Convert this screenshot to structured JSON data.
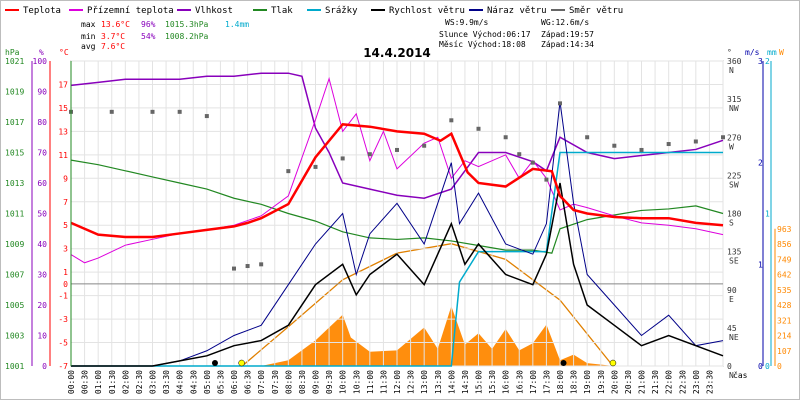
{
  "chart_data": {
    "type": "line",
    "title": "14.4.2014",
    "legend": [
      {
        "name": "Teplota",
        "color": "#ff0000"
      },
      {
        "name": "Přízemní teplota",
        "color": "#dd00dd"
      },
      {
        "name": "Vlhkost",
        "color": "#8800bb"
      },
      {
        "name": "Tlak",
        "color": "#228822"
      },
      {
        "name": "Srážky",
        "color": "#00aacc"
      },
      {
        "name": "Rychlost větru",
        "color": "#000000"
      },
      {
        "name": "Náraz větru",
        "color": "#000088"
      },
      {
        "name": "Směr větru",
        "color": "#666666"
      }
    ],
    "stats": {
      "max_label": "max",
      "max_temp": "13.6°C",
      "max_hum": "96%",
      "max_press": "1015.3hPa",
      "max_rain": "1.4mm",
      "min_label": "min",
      "min_temp": "3.7°C",
      "min_hum": "54%",
      "min_press": "1008.2hPa",
      "avg_label": "avg",
      "avg_temp": "7.6°C"
    },
    "wind_info": {
      "ws": "WS:9.9m/s",
      "wg": "WG:12.6m/s",
      "sun": "Slunce Východ:06:17",
      "sun_set": "Západ:19:57",
      "moon": "Měsíc  Východ:18:08",
      "moon_set": "Západ:14:34"
    },
    "x_ticks": [
      "00:00",
      "00:30",
      "01:00",
      "01:30",
      "02:00",
      "02:30",
      "03:00",
      "03:30",
      "04:00",
      "04:30",
      "05:00",
      "05:30",
      "06:00",
      "06:30",
      "07:00",
      "07:30",
      "08:00",
      "08:30",
      "09:00",
      "09:30",
      "10:00",
      "10:30",
      "11:00",
      "11:30",
      "12:00",
      "12:30",
      "13:00",
      "13:30",
      "14:00",
      "14:30",
      "15:00",
      "15:30",
      "16:00",
      "16:30",
      "17:00",
      "17:30",
      "18:00",
      "18:30",
      "19:00",
      "19:30",
      "20:00",
      "20:30",
      "21:00",
      "21:30",
      "22:00",
      "22:30",
      "23:00",
      "23:30"
    ],
    "x_axis_label": "čas",
    "axes": {
      "hpa": {
        "label": "hPa",
        "color": "#228822",
        "ticks": [
          "1021",
          "1019",
          "1017",
          "1015",
          "1013",
          "1011",
          "1009",
          "1007",
          "1005",
          "1003",
          "1001"
        ]
      },
      "pct": {
        "label": "%",
        "color": "#8800bb",
        "ticks": [
          "100",
          "90",
          "80",
          "70",
          "60",
          "50",
          "40",
          "30",
          "20",
          "10",
          "0"
        ]
      },
      "degc": {
        "label": "°C",
        "color": "#ff0000",
        "ticks": [
          "17",
          "15",
          "13",
          "11",
          "9",
          "7",
          "5",
          "3",
          "1",
          "-1",
          "-3",
          "-5",
          "-7"
        ],
        "zero": "0"
      },
      "deg": {
        "label": "°",
        "ticks": [
          "360\nN",
          "315\nNW",
          "270\nW",
          "225\nSW",
          "180\nS",
          "135\nSE",
          "90\nE",
          "45\nNE",
          "0\nN"
        ]
      },
      "ms": {
        "label": "m/s",
        "color": "#0000aa",
        "ticks": [
          "3",
          "2",
          "1",
          "0"
        ]
      },
      "mm": {
        "label": "mm",
        "color": "#00aacc",
        "ticks": [
          "2",
          "1",
          "0"
        ]
      },
      "wm2": {
        "label": "W",
        "color": "#ff8800",
        "ticks": [
          "963",
          "856",
          "749",
          "642",
          "535",
          "428",
          "321",
          "214",
          "107",
          "0"
        ]
      }
    },
    "ylim_temp": [
      -7,
      19
    ],
    "series_temp": [
      [
        0,
        5.2
      ],
      [
        1,
        4.2
      ],
      [
        2,
        4.0
      ],
      [
        3,
        4.0
      ],
      [
        4,
        4.3
      ],
      [
        5,
        4.6
      ],
      [
        6,
        4.9
      ],
      [
        6.5,
        5.2
      ],
      [
        7,
        5.6
      ],
      [
        8,
        6.8
      ],
      [
        9,
        10.8
      ],
      [
        10,
        13.6
      ],
      [
        11,
        13.4
      ],
      [
        12,
        13.0
      ],
      [
        13,
        12.8
      ],
      [
        13.6,
        12.2
      ],
      [
        14,
        12.8
      ],
      [
        14.6,
        9.5
      ],
      [
        15,
        8.6
      ],
      [
        16,
        8.3
      ],
      [
        17,
        9.8
      ],
      [
        17.7,
        9.6
      ],
      [
        18,
        7.5
      ],
      [
        18.5,
        6.3
      ],
      [
        19,
        6.0
      ],
      [
        20,
        5.7
      ],
      [
        21,
        5.6
      ],
      [
        22,
        5.6
      ],
      [
        23,
        5.2
      ],
      [
        24,
        5.0
      ]
    ],
    "series_ground": [
      [
        0,
        2.5
      ],
      [
        0.5,
        1.8
      ],
      [
        1,
        2.2
      ],
      [
        2,
        3.3
      ],
      [
        3,
        3.8
      ],
      [
        4,
        4.3
      ],
      [
        5,
        4.6
      ],
      [
        6,
        5.0
      ],
      [
        7,
        5.8
      ],
      [
        8,
        7.5
      ],
      [
        9,
        14.0
      ],
      [
        9.5,
        17.5
      ],
      [
        10,
        13.0
      ],
      [
        10.5,
        14.5
      ],
      [
        11,
        10.5
      ],
      [
        11.5,
        13.0
      ],
      [
        12,
        9.8
      ],
      [
        13,
        12.0
      ],
      [
        13.5,
        12.5
      ],
      [
        14,
        9.0
      ],
      [
        14.5,
        10.5
      ],
      [
        15,
        10.0
      ],
      [
        16,
        11.0
      ],
      [
        16.5,
        9.0
      ],
      [
        17,
        10.5
      ],
      [
        17.5,
        9.0
      ],
      [
        18,
        6.3
      ],
      [
        18.5,
        6.8
      ],
      [
        19,
        6.5
      ],
      [
        20,
        5.8
      ],
      [
        21,
        5.2
      ],
      [
        22,
        5.0
      ],
      [
        23,
        4.7
      ],
      [
        24,
        4.2
      ]
    ],
    "series_humidity": [
      [
        0,
        92
      ],
      [
        1,
        93
      ],
      [
        2,
        94
      ],
      [
        3,
        94
      ],
      [
        4,
        94
      ],
      [
        5,
        95
      ],
      [
        6,
        95
      ],
      [
        7,
        96
      ],
      [
        8,
        96
      ],
      [
        8.5,
        95
      ],
      [
        9,
        78
      ],
      [
        9.5,
        70
      ],
      [
        10,
        60
      ],
      [
        11,
        58
      ],
      [
        12,
        56
      ],
      [
        13,
        55
      ],
      [
        14,
        58
      ],
      [
        14.5,
        64
      ],
      [
        15,
        70
      ],
      [
        16,
        70
      ],
      [
        17,
        67
      ],
      [
        17.5,
        64
      ],
      [
        18,
        75
      ],
      [
        19,
        70
      ],
      [
        20,
        68
      ],
      [
        21,
        69
      ],
      [
        22,
        70
      ],
      [
        23,
        71
      ],
      [
        24,
        74
      ]
    ],
    "series_pressure": [
      [
        0,
        1014.5
      ],
      [
        1,
        1014.2
      ],
      [
        2,
        1013.8
      ],
      [
        3,
        1013.4
      ],
      [
        4,
        1013.0
      ],
      [
        5,
        1012.6
      ],
      [
        6,
        1012.0
      ],
      [
        7,
        1011.6
      ],
      [
        8,
        1011.0
      ],
      [
        9,
        1010.5
      ],
      [
        10,
        1009.8
      ],
      [
        11,
        1009.4
      ],
      [
        12,
        1009.3
      ],
      [
        13,
        1009.4
      ],
      [
        14,
        1009.2
      ],
      [
        15,
        1008.9
      ],
      [
        16,
        1008.6
      ],
      [
        17,
        1008.6
      ],
      [
        17.7,
        1008.4
      ],
      [
        18,
        1010.0
      ],
      [
        19,
        1010.6
      ],
      [
        20,
        1010.9
      ],
      [
        21,
        1011.2
      ],
      [
        22,
        1011.3
      ],
      [
        23,
        1011.5
      ],
      [
        24,
        1011.0
      ]
    ],
    "series_rain_mm": [
      [
        0,
        0
      ],
      [
        14,
        0
      ],
      [
        14.3,
        0.55
      ],
      [
        15,
        0.75
      ],
      [
        17.5,
        0.75
      ],
      [
        18,
        1.4
      ],
      [
        24,
        1.4
      ]
    ],
    "series_wind_ms": [
      [
        0,
        0
      ],
      [
        3,
        0
      ],
      [
        4,
        0.05
      ],
      [
        5,
        0.1
      ],
      [
        6,
        0.2
      ],
      [
        7,
        0.25
      ],
      [
        8,
        0.4
      ],
      [
        9,
        0.8
      ],
      [
        10,
        1.0
      ],
      [
        10.5,
        0.7
      ],
      [
        11,
        0.9
      ],
      [
        12,
        1.1
      ],
      [
        13,
        0.8
      ],
      [
        14,
        1.4
      ],
      [
        14.5,
        1.0
      ],
      [
        15,
        1.2
      ],
      [
        16,
        0.9
      ],
      [
        17,
        0.8
      ],
      [
        17.5,
        1.1
      ],
      [
        18,
        1.8
      ],
      [
        18.5,
        1.0
      ],
      [
        19,
        0.6
      ],
      [
        20,
        0.4
      ],
      [
        21,
        0.2
      ],
      [
        22,
        0.3
      ],
      [
        23,
        0.2
      ],
      [
        24,
        0.1
      ]
    ],
    "series_gust_ms": [
      [
        0,
        0
      ],
      [
        3,
        0
      ],
      [
        4,
        0.05
      ],
      [
        5,
        0.15
      ],
      [
        6,
        0.3
      ],
      [
        7,
        0.4
      ],
      [
        8,
        0.8
      ],
      [
        9,
        1.2
      ],
      [
        10,
        1.5
      ],
      [
        10.5,
        0.9
      ],
      [
        11,
        1.3
      ],
      [
        12,
        1.6
      ],
      [
        13,
        1.2
      ],
      [
        14,
        2.0
      ],
      [
        14.3,
        1.4
      ],
      [
        15,
        1.7
      ],
      [
        16,
        1.2
      ],
      [
        17,
        1.1
      ],
      [
        17.5,
        1.4
      ],
      [
        18,
        2.6
      ],
      [
        18.5,
        1.6
      ],
      [
        19,
        0.9
      ],
      [
        20,
        0.6
      ],
      [
        21,
        0.3
      ],
      [
        22,
        0.5
      ],
      [
        23,
        0.2
      ],
      [
        24,
        0.25
      ]
    ],
    "series_wind_dir": [
      [
        0,
        300
      ],
      [
        1.5,
        300
      ],
      [
        3,
        300
      ],
      [
        4,
        300
      ],
      [
        5,
        295
      ],
      [
        6,
        115
      ],
      [
        6.5,
        118
      ],
      [
        7,
        120
      ],
      [
        8,
        230
      ],
      [
        9,
        235
      ],
      [
        10,
        245
      ],
      [
        11,
        250
      ],
      [
        12,
        255
      ],
      [
        13,
        260
      ],
      [
        14,
        290
      ],
      [
        15,
        280
      ],
      [
        16,
        270
      ],
      [
        16.5,
        250
      ],
      [
        17,
        240
      ],
      [
        17.5,
        220
      ],
      [
        18,
        310
      ],
      [
        19,
        270
      ],
      [
        20,
        260
      ],
      [
        21,
        255
      ],
      [
        22,
        262
      ],
      [
        23,
        265
      ],
      [
        24,
        270
      ]
    ],
    "series_solar_wm2": [
      [
        0,
        0
      ],
      [
        6,
        0
      ],
      [
        7,
        0
      ],
      [
        8,
        40
      ],
      [
        9,
        180
      ],
      [
        9.5,
        270
      ],
      [
        10,
        360
      ],
      [
        10.3,
        200
      ],
      [
        11,
        100
      ],
      [
        12,
        110
      ],
      [
        13,
        270
      ],
      [
        13.5,
        120
      ],
      [
        14,
        420
      ],
      [
        14.5,
        150
      ],
      [
        15,
        230
      ],
      [
        15.5,
        120
      ],
      [
        16,
        260
      ],
      [
        16.5,
        110
      ],
      [
        17,
        160
      ],
      [
        17.5,
        290
      ],
      [
        18,
        40
      ],
      [
        18.5,
        80
      ],
      [
        19,
        20
      ],
      [
        20,
        0
      ],
      [
        24,
        0
      ]
    ],
    "series_clearsky_wm2": [
      [
        6.3,
        0
      ],
      [
        8,
        250
      ],
      [
        10,
        550
      ],
      [
        12,
        720
      ],
      [
        14,
        780
      ],
      [
        16,
        680
      ],
      [
        18,
        420
      ],
      [
        19.95,
        0
      ]
    ]
  }
}
